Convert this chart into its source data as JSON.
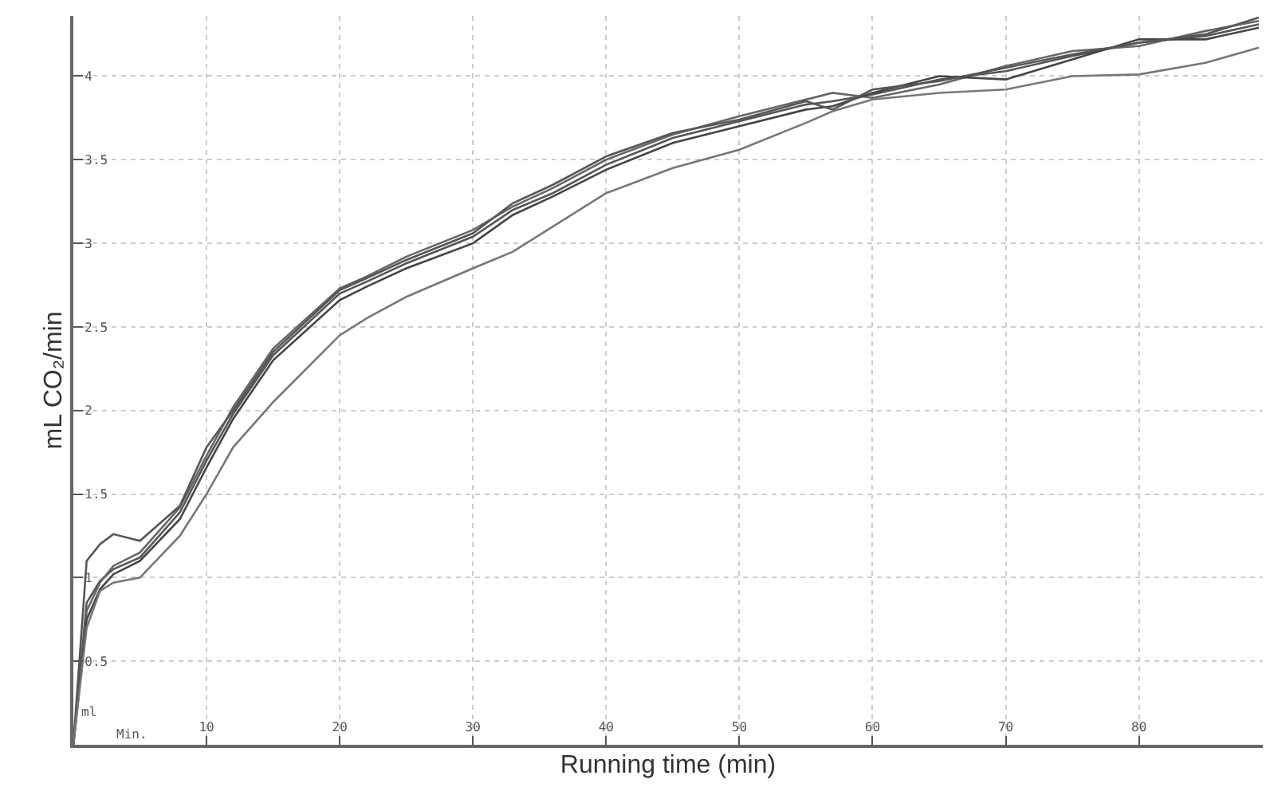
{
  "chart_data": {
    "type": "line",
    "xlabel": "Running time (min)",
    "ylabel": "mL CO₂/min",
    "annotations": [
      "ml",
      "Min."
    ],
    "x": [
      0,
      1,
      2,
      3,
      5,
      8,
      10,
      12,
      15,
      20,
      22,
      25,
      30,
      33,
      36,
      40,
      45,
      50,
      55,
      57,
      60,
      65,
      70,
      75,
      80,
      85,
      89
    ],
    "series": [
      {
        "color": "#555555",
        "values": [
          0,
          0.85,
          0.98,
          1.05,
          1.12,
          1.39,
          1.7,
          1.98,
          2.33,
          2.7,
          2.77,
          2.88,
          3.04,
          3.2,
          3.3,
          3.47,
          3.63,
          3.73,
          3.83,
          3.85,
          3.89,
          3.98,
          4.03,
          4.12,
          4.2,
          4.24,
          4.31
        ]
      },
      {
        "color": "#666666",
        "values": [
          0,
          0.8,
          0.97,
          1.07,
          1.15,
          1.42,
          1.73,
          2.02,
          2.37,
          2.73,
          2.8,
          2.92,
          3.08,
          3.22,
          3.33,
          3.5,
          3.65,
          3.76,
          3.86,
          3.9,
          3.87,
          3.95,
          4.06,
          4.15,
          4.18,
          4.27,
          4.33
        ]
      },
      {
        "color": "#444444",
        "values": [
          0,
          0.75,
          0.93,
          1.02,
          1.1,
          1.35,
          1.66,
          1.95,
          2.3,
          2.66,
          2.74,
          2.85,
          3.0,
          3.17,
          3.28,
          3.44,
          3.6,
          3.7,
          3.8,
          3.82,
          3.9,
          4.0,
          3.98,
          4.1,
          4.22,
          4.22,
          4.29
        ]
      },
      {
        "color": "#555555",
        "values": [
          0,
          1.1,
          1.2,
          1.26,
          1.22,
          1.43,
          1.78,
          2.0,
          2.35,
          2.72,
          2.79,
          2.9,
          3.06,
          3.24,
          3.35,
          3.52,
          3.66,
          3.74,
          3.85,
          3.8,
          3.92,
          3.97,
          4.05,
          4.13,
          4.2,
          4.25,
          4.35
        ]
      },
      {
        "color": "#777777",
        "values": [
          0,
          0.7,
          0.92,
          0.97,
          1.0,
          1.25,
          1.5,
          1.78,
          2.05,
          2.45,
          2.55,
          2.68,
          2.85,
          2.95,
          3.1,
          3.3,
          3.45,
          3.56,
          3.72,
          3.79,
          3.86,
          3.9,
          3.92,
          4.0,
          4.01,
          4.08,
          4.17
        ]
      }
    ],
    "xlim": [
      0,
      89.3
    ],
    "ylim": [
      0,
      4.36
    ],
    "xticks": [
      10,
      20,
      30,
      40,
      50,
      60,
      70,
      80
    ],
    "yticks": [
      0.5,
      1,
      1.5,
      2,
      2.5,
      3,
      3.5,
      4
    ],
    "grid": true,
    "marker": "none",
    "line_style": "solid"
  }
}
